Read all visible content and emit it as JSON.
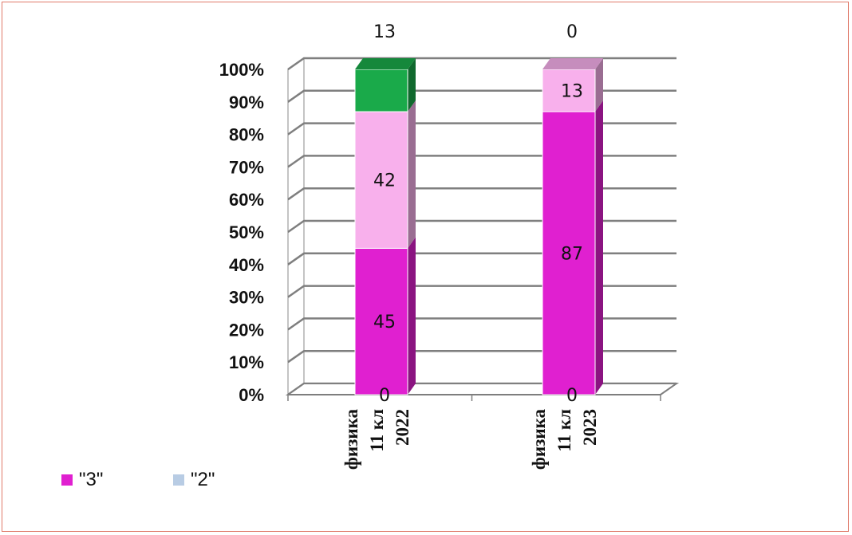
{
  "chart_data": {
    "type": "bar",
    "stacked": true,
    "percent_stacked": true,
    "three_d": true,
    "y_ticks": [
      "0%",
      "10%",
      "20%",
      "30%",
      "40%",
      "50%",
      "60%",
      "70%",
      "80%",
      "90%",
      "100%"
    ],
    "ylim": [
      0,
      100
    ],
    "grid": true,
    "legend_position": "bottom-left",
    "categories": [
      [
        "физика",
        "11 кл",
        "2022"
      ],
      [
        "физика",
        "11 кл",
        "2023"
      ]
    ],
    "series": [
      {
        "name": "\"2\"",
        "color": "#b8cce4",
        "values": [
          0,
          0
        ],
        "labels": [
          "0",
          "0"
        ],
        "in_legend": true
      },
      {
        "name": "\"3\"",
        "color": "#e020d0",
        "values": [
          45,
          87
        ],
        "labels": [
          "45",
          "87"
        ],
        "in_legend": true
      },
      {
        "name": "",
        "color": "#f8b0ec",
        "values": [
          42,
          13
        ],
        "labels": [
          "42",
          "13"
        ],
        "in_legend": false
      },
      {
        "name": "",
        "color": "#1aaa4a",
        "values": [
          13,
          0
        ],
        "labels": [
          "13",
          "0"
        ],
        "in_legend": false
      }
    ],
    "legend": [
      "\"3\"",
      "\"2\""
    ]
  }
}
